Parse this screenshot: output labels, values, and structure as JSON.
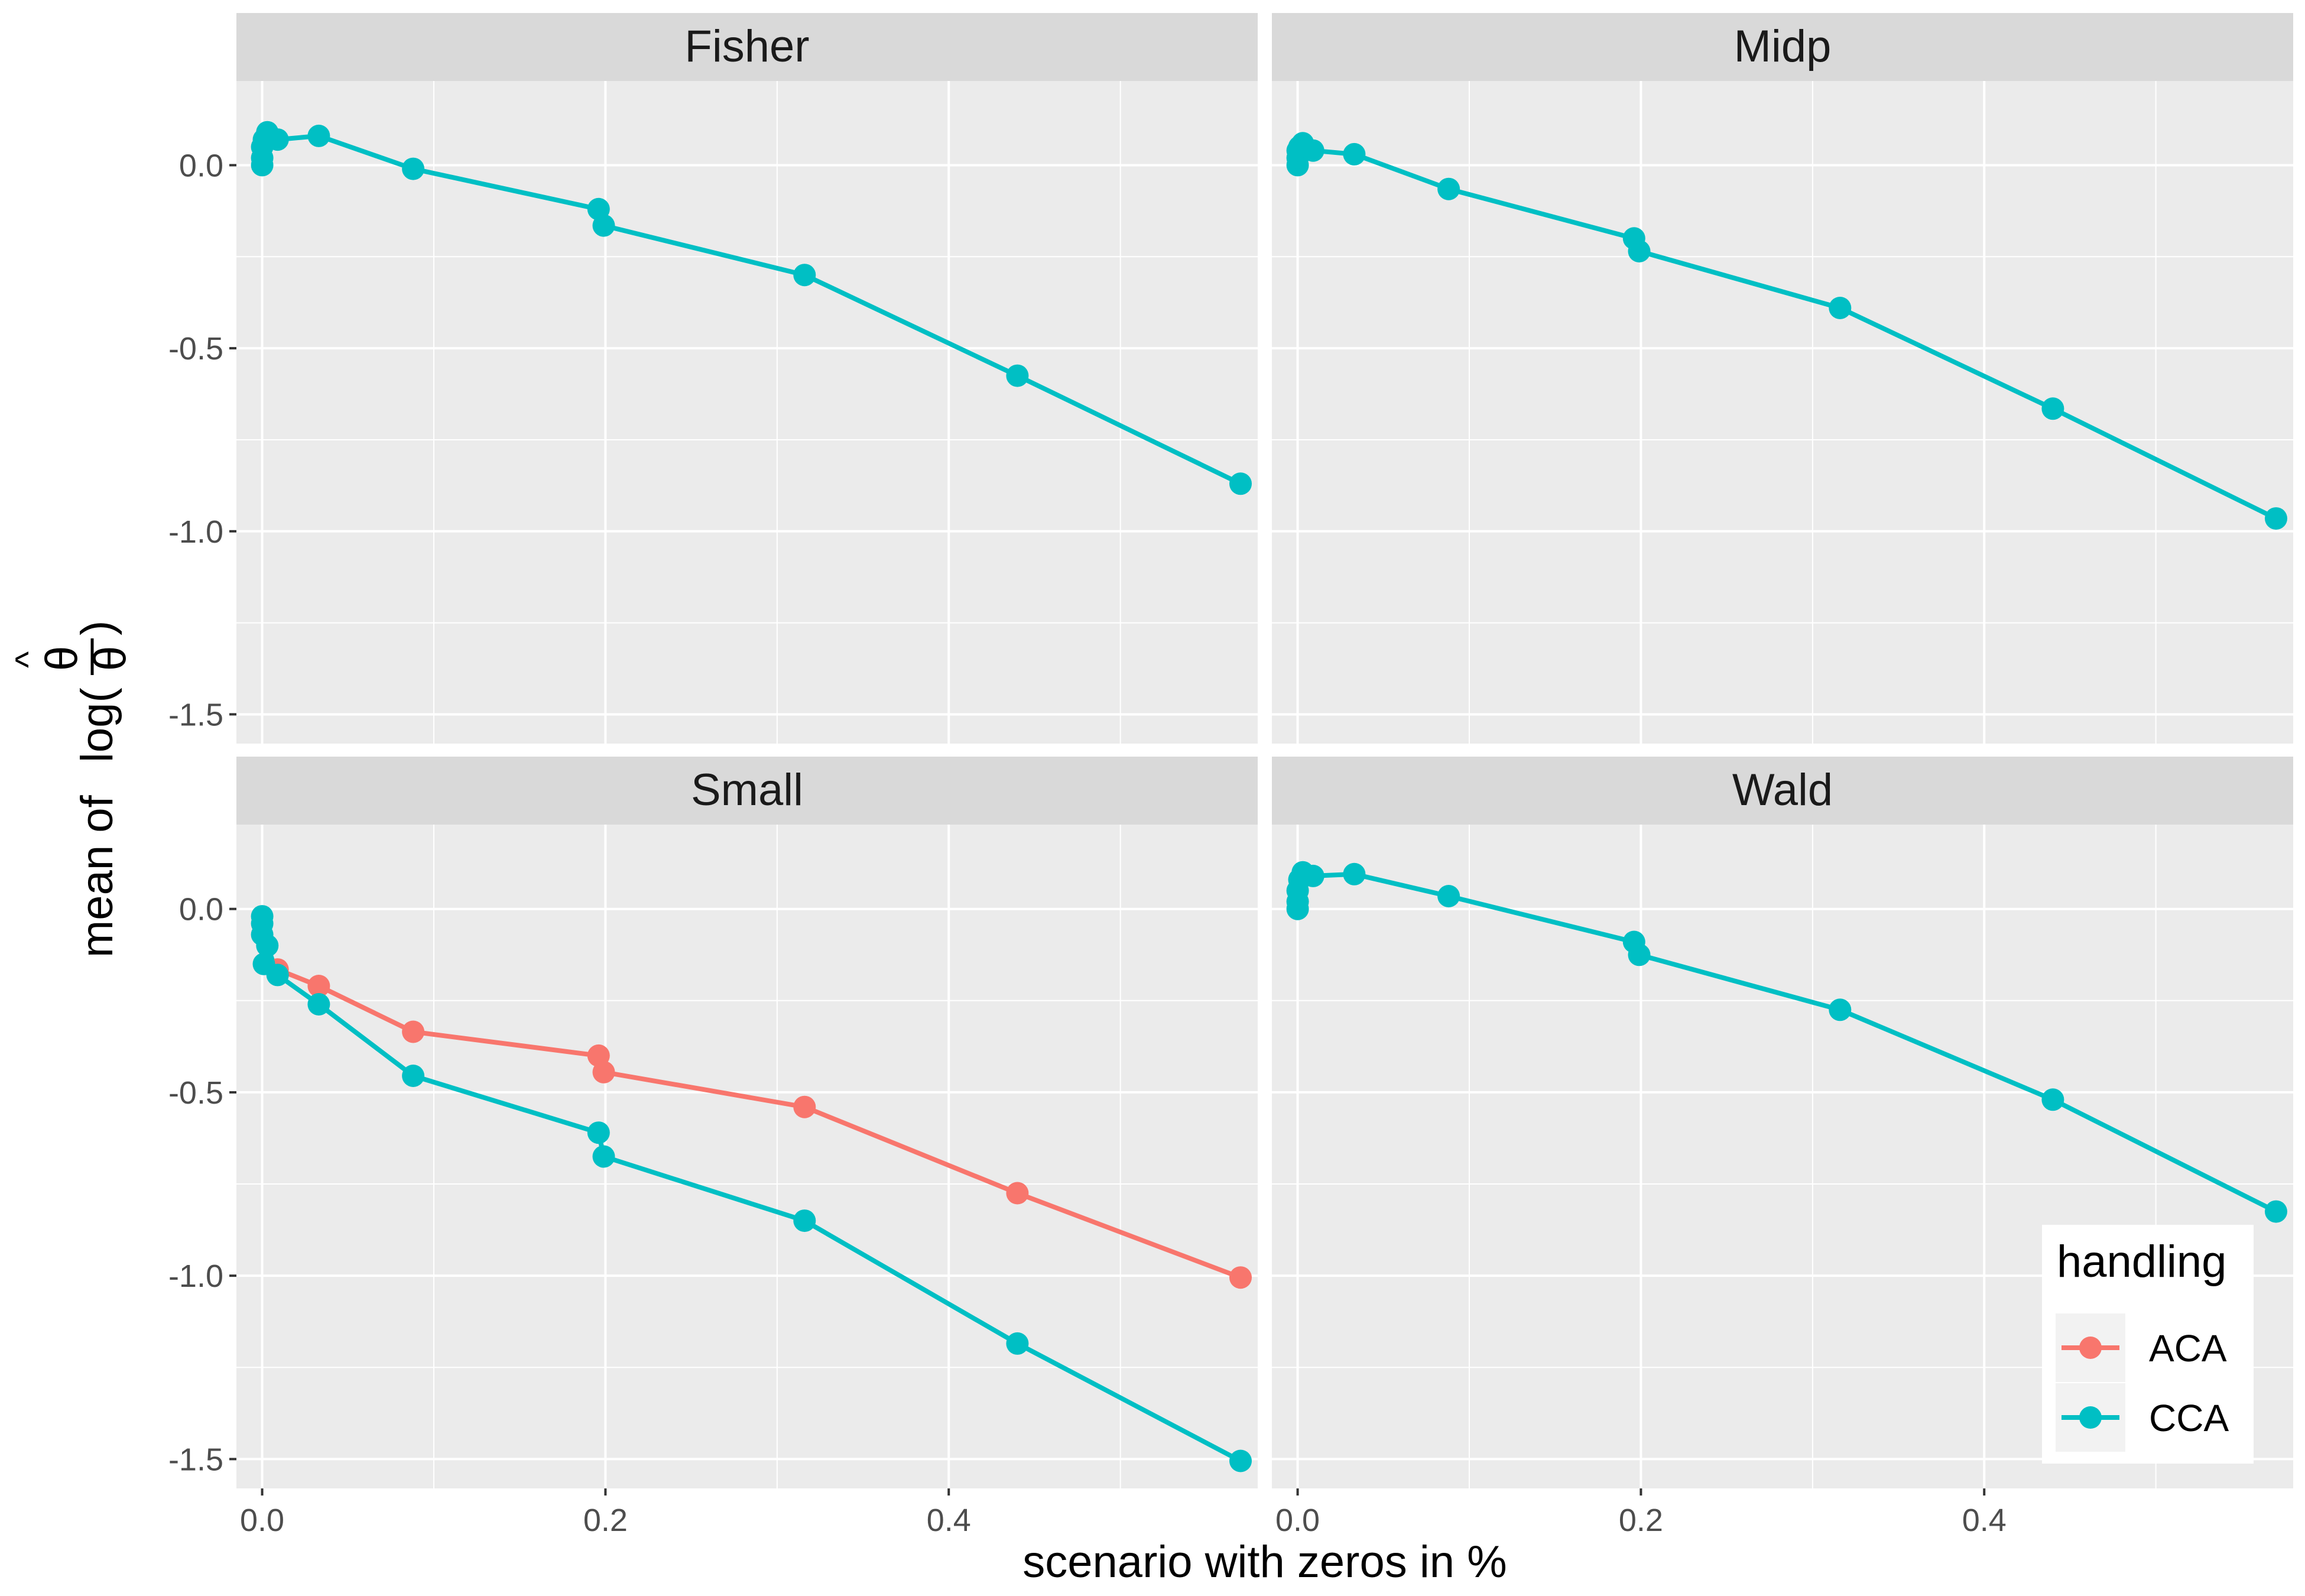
{
  "colors": {
    "ACA": "#F8766D",
    "CCA": "#00BFC4"
  },
  "chart_data": {
    "type": "line",
    "xlabel": "scenario with zeros in %",
    "ylabel_prefix": "mean of",
    "ylabel_math": "log(θ̂ / θ)",
    "xlim": [
      -0.015,
      0.58
    ],
    "ylim": [
      -1.58,
      0.23
    ],
    "xticks": [
      0.0,
      0.2,
      0.4
    ],
    "xtick_labels": [
      "0.0",
      "0.2",
      "0.4"
    ],
    "yticks": [
      0.0,
      -0.5,
      -1.0,
      -1.5
    ],
    "ytick_labels": [
      "0.0",
      "-0.5",
      "-1.0",
      "-1.5"
    ],
    "grid": true,
    "legend": {
      "title": "handling",
      "position": "bottom-right",
      "entries": [
        "ACA",
        "CCA"
      ]
    },
    "x": [
      0.0,
      0.0,
      0.0,
      0.001,
      0.003,
      0.009,
      0.033,
      0.088,
      0.196,
      0.199,
      0.316,
      0.44,
      0.57
    ],
    "panels": [
      {
        "title": "Fisher",
        "series": [
          {
            "name": "CCA",
            "values": [
              0.0,
              0.02,
              0.05,
              0.07,
              0.09,
              0.07,
              0.08,
              -0.01,
              -0.12,
              -0.165,
              -0.3,
              -0.575,
              -0.87
            ]
          }
        ]
      },
      {
        "title": "Midp",
        "series": [
          {
            "name": "CCA",
            "values": [
              0.0,
              0.02,
              0.04,
              0.05,
              0.06,
              0.04,
              0.03,
              -0.065,
              -0.2,
              -0.235,
              -0.39,
              -0.665,
              -0.965
            ]
          }
        ]
      },
      {
        "title": "Small",
        "series": [
          {
            "name": "ACA",
            "values": [
              null,
              null,
              null,
              null,
              null,
              -0.165,
              -0.21,
              -0.335,
              -0.4,
              -0.445,
              -0.54,
              -0.775,
              -1.005
            ]
          },
          {
            "name": "CCA",
            "values": [
              -0.02,
              -0.04,
              -0.07,
              -0.15,
              -0.1,
              -0.18,
              -0.26,
              -0.455,
              -0.61,
              -0.675,
              -0.85,
              -1.185,
              -1.505
            ]
          }
        ]
      },
      {
        "title": "Wald",
        "series": [
          {
            "name": "CCA",
            "values": [
              0.0,
              0.02,
              0.05,
              0.08,
              0.1,
              0.09,
              0.095,
              0.035,
              -0.09,
              -0.125,
              -0.275,
              -0.52,
              -0.825
            ]
          }
        ]
      }
    ]
  }
}
